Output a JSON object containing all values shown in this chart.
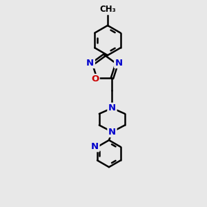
{
  "bg_color": "#e8e8e8",
  "bond_color": "#000000",
  "n_color": "#0000cc",
  "o_color": "#cc0000",
  "line_width": 1.8,
  "font_size": 9.5,
  "fig_size": [
    3.0,
    3.0
  ],
  "dpi": 100,
  "xlim": [
    0,
    10
  ],
  "ylim": [
    0,
    10
  ]
}
